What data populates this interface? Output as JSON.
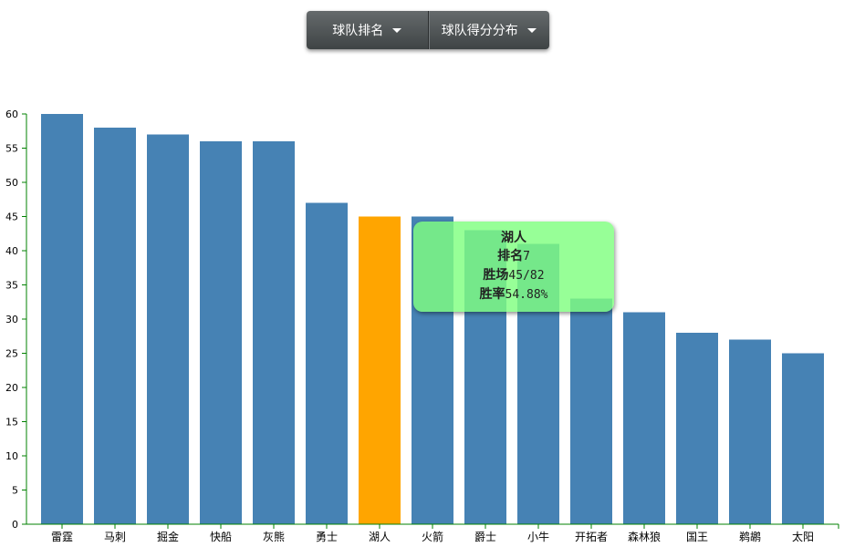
{
  "toolbar": {
    "buttons": [
      {
        "label": "球队排名",
        "icon": "caret-down-icon"
      },
      {
        "label": "球队得分分布",
        "icon": "caret-down-icon"
      }
    ]
  },
  "colors": {
    "bar": "#4682b4",
    "highlight": "#ffa500",
    "axis": "#008000"
  },
  "chart_data": {
    "type": "bar",
    "categories": [
      "雷霆",
      "马刺",
      "掘金",
      "快船",
      "灰熊",
      "勇士",
      "湖人",
      "火箭",
      "爵士",
      "小牛",
      "开拓者",
      "森林狼",
      "国王",
      "鹈鹕",
      "太阳"
    ],
    "values": [
      60,
      58,
      57,
      56,
      56,
      47,
      45,
      45,
      43,
      41,
      33,
      31,
      28,
      27,
      25
    ],
    "ylim": [
      0,
      60
    ],
    "yticks": [
      0,
      5,
      10,
      15,
      20,
      25,
      30,
      35,
      40,
      45,
      50,
      55,
      60
    ],
    "highlight_index": 6,
    "title": "",
    "xlabel": "",
    "ylabel": ""
  },
  "tooltip": {
    "title": "湖人",
    "rank_label": "排名",
    "rank_value": "7",
    "wins_label": "胜场",
    "wins_value": "45/82",
    "rate_label": "胜率",
    "rate_value": "54.88%"
  }
}
